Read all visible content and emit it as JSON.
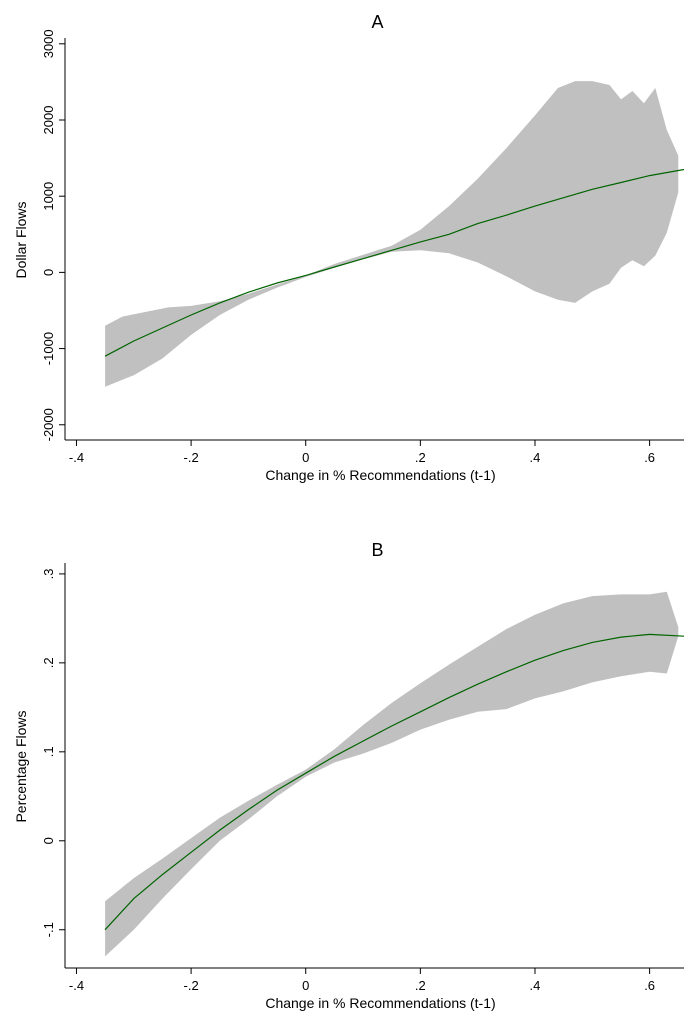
{
  "chart_data": [
    {
      "type": "line",
      "title": "A",
      "xlabel": "Change in % Recommendations (t-1)",
      "ylabel": "Dollar Flows",
      "xlim": [
        -0.42,
        0.66
      ],
      "ylim": [
        -2200,
        3050
      ],
      "xticks": [
        -0.4,
        -0.2,
        0,
        0.2,
        0.4,
        0.6
      ],
      "xtick_labels": [
        "-.4",
        "-.2",
        "0",
        ".2",
        ".4",
        ".6"
      ],
      "yticks": [
        -2000,
        -1000,
        0,
        1000,
        2000,
        3000
      ],
      "ytick_labels": [
        "-2000",
        "-1000",
        "0",
        "1000",
        "2000",
        "3000"
      ],
      "grid": false,
      "colors": {
        "line": "#006400",
        "band": "#c0c0c0"
      },
      "series": [
        {
          "role": "fit",
          "x": [
            -0.35,
            -0.3,
            -0.25,
            -0.2,
            -0.15,
            -0.1,
            -0.05,
            0.0,
            0.05,
            0.1,
            0.15,
            0.2,
            0.25,
            0.3,
            0.35,
            0.4,
            0.45,
            0.5,
            0.55,
            0.6,
            0.66
          ],
          "y": [
            -1100,
            -900,
            -730,
            -560,
            -400,
            -260,
            -140,
            -40,
            70,
            180,
            290,
            400,
            500,
            640,
            750,
            870,
            980,
            1090,
            1180,
            1270,
            1350
          ]
        },
        {
          "role": "upper-bound",
          "x": [
            -0.35,
            -0.32,
            -0.28,
            -0.24,
            -0.2,
            -0.15,
            -0.1,
            -0.05,
            0.0,
            0.05,
            0.1,
            0.15,
            0.2,
            0.25,
            0.3,
            0.35,
            0.4,
            0.44,
            0.47,
            0.5,
            0.53,
            0.55,
            0.57,
            0.59,
            0.61,
            0.63,
            0.65
          ],
          "y": [
            -700,
            -580,
            -520,
            -460,
            -440,
            -380,
            -280,
            -160,
            -40,
            110,
            230,
            350,
            560,
            870,
            1230,
            1630,
            2060,
            2420,
            2510,
            2510,
            2460,
            2270,
            2380,
            2220,
            2420,
            1870,
            1530
          ]
        },
        {
          "role": "lower-bound",
          "x": [
            -0.35,
            -0.3,
            -0.25,
            -0.2,
            -0.15,
            -0.1,
            -0.05,
            0.0,
            0.05,
            0.1,
            0.15,
            0.2,
            0.25,
            0.3,
            0.35,
            0.4,
            0.44,
            0.47,
            0.5,
            0.53,
            0.55,
            0.57,
            0.59,
            0.61,
            0.63,
            0.65
          ],
          "y": [
            -1500,
            -1350,
            -1130,
            -820,
            -560,
            -360,
            -200,
            -60,
            60,
            170,
            270,
            290,
            250,
            130,
            -50,
            -250,
            -360,
            -400,
            -250,
            -150,
            60,
            160,
            80,
            220,
            520,
            1050
          ]
        }
      ]
    },
    {
      "type": "line",
      "title": "B",
      "xlabel": "Change in % Recommendations (t-1)",
      "ylabel": "Percentage Flows",
      "xlim": [
        -0.42,
        0.66
      ],
      "ylim": [
        -0.143,
        0.31
      ],
      "xticks": [
        -0.4,
        -0.2,
        0,
        0.2,
        0.4,
        0.6
      ],
      "xtick_labels": [
        "-.4",
        "-.2",
        "0",
        ".2",
        ".4",
        ".6"
      ],
      "yticks": [
        -0.1,
        0,
        0.1,
        0.2,
        0.3
      ],
      "ytick_labels": [
        "-.1",
        "0",
        ".1",
        ".2",
        ".3"
      ],
      "grid": false,
      "colors": {
        "line": "#006400",
        "band": "#c0c0c0"
      },
      "series": [
        {
          "role": "fit",
          "x": [
            -0.35,
            -0.3,
            -0.25,
            -0.2,
            -0.15,
            -0.1,
            -0.05,
            0.0,
            0.05,
            0.1,
            0.15,
            0.2,
            0.25,
            0.3,
            0.35,
            0.4,
            0.45,
            0.5,
            0.55,
            0.6,
            0.66
          ],
          "y": [
            -0.1,
            -0.065,
            -0.038,
            -0.013,
            0.012,
            0.035,
            0.057,
            0.076,
            0.095,
            0.112,
            0.129,
            0.145,
            0.161,
            0.176,
            0.19,
            0.203,
            0.214,
            0.223,
            0.229,
            0.232,
            0.23
          ]
        },
        {
          "role": "upper-bound",
          "x": [
            -0.35,
            -0.3,
            -0.25,
            -0.2,
            -0.15,
            -0.1,
            -0.05,
            0.0,
            0.05,
            0.1,
            0.15,
            0.2,
            0.25,
            0.3,
            0.35,
            0.4,
            0.45,
            0.5,
            0.55,
            0.6,
            0.63,
            0.65
          ],
          "y": [
            -0.068,
            -0.042,
            -0.02,
            0.003,
            0.026,
            0.045,
            0.063,
            0.08,
            0.103,
            0.13,
            0.155,
            0.177,
            0.198,
            0.218,
            0.238,
            0.254,
            0.267,
            0.275,
            0.277,
            0.277,
            0.28,
            0.24
          ]
        },
        {
          "role": "lower-bound",
          "x": [
            -0.35,
            -0.3,
            -0.25,
            -0.2,
            -0.15,
            -0.1,
            -0.05,
            0.0,
            0.05,
            0.1,
            0.15,
            0.2,
            0.25,
            0.3,
            0.35,
            0.4,
            0.45,
            0.5,
            0.55,
            0.6,
            0.63,
            0.65
          ],
          "y": [
            -0.13,
            -0.1,
            -0.065,
            -0.032,
            0.0,
            0.024,
            0.05,
            0.072,
            0.088,
            0.098,
            0.11,
            0.125,
            0.136,
            0.145,
            0.148,
            0.16,
            0.168,
            0.178,
            0.185,
            0.19,
            0.188,
            0.23
          ]
        }
      ]
    }
  ]
}
